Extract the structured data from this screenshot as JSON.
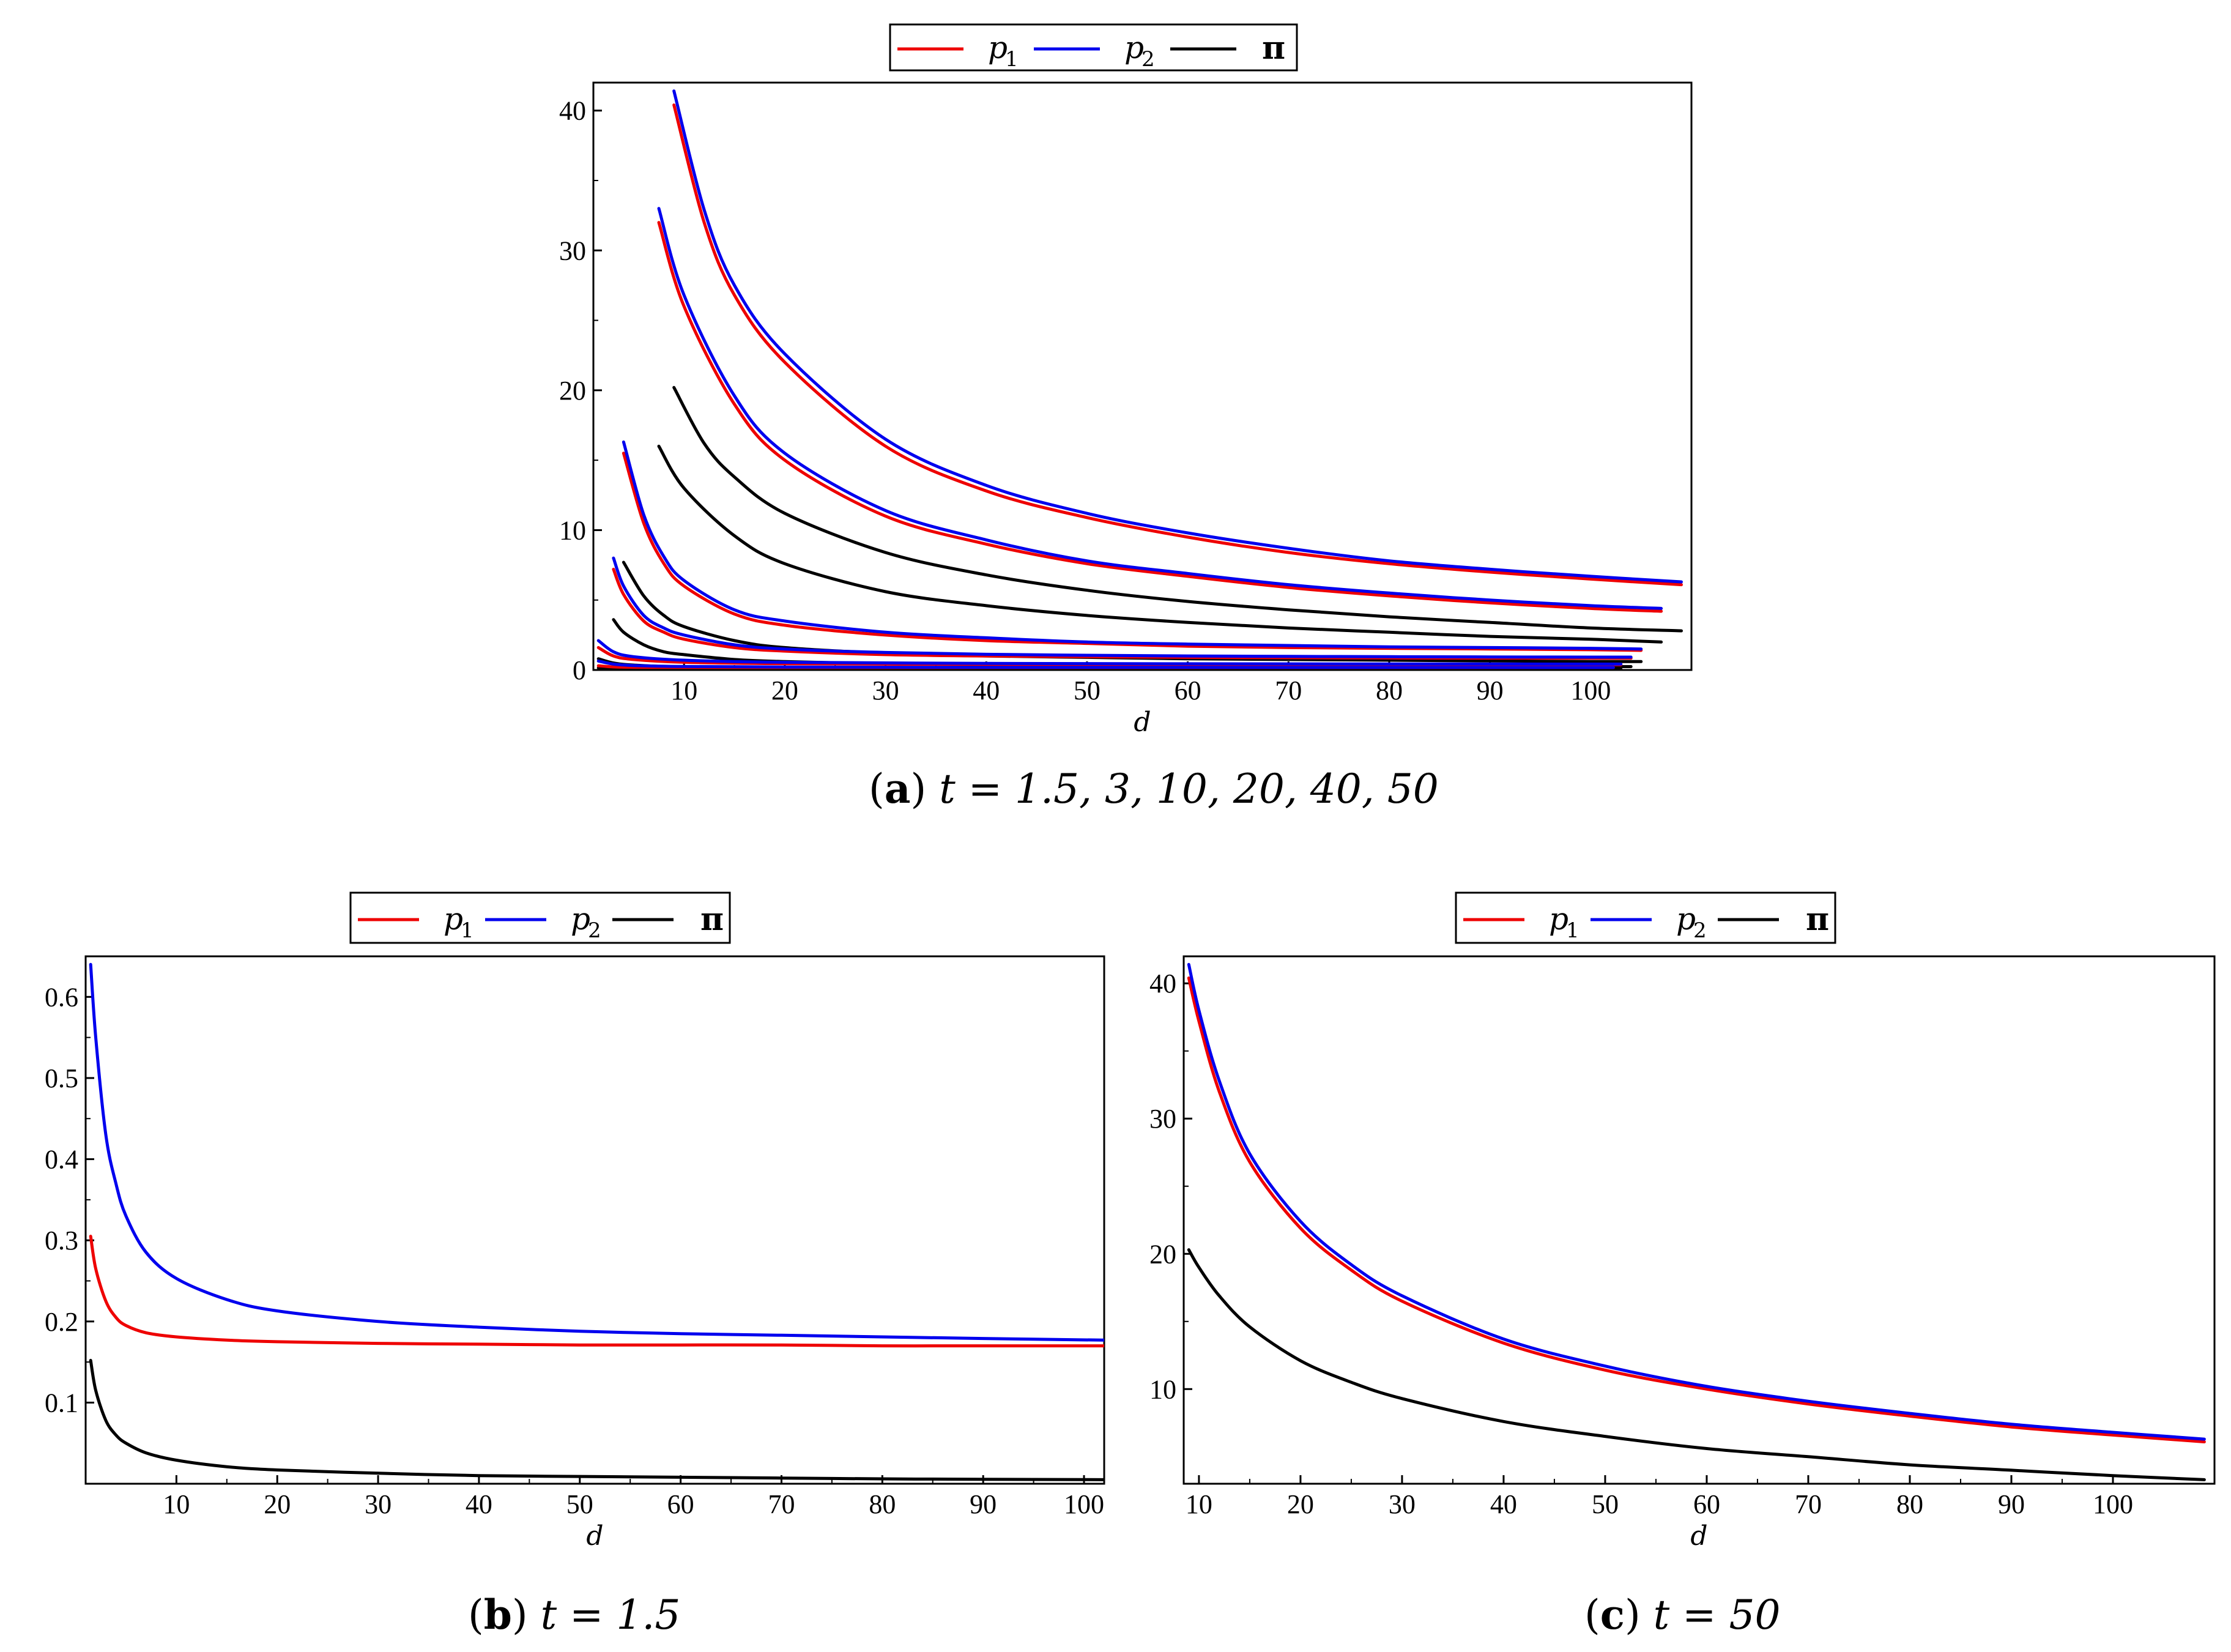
{
  "legend": {
    "p1": {
      "label": "p",
      "sub": "1",
      "color": "#ee0000"
    },
    "p2": {
      "label": "p",
      "sub": "2",
      "color": "#0000ee"
    },
    "pi": {
      "label": "π",
      "color": "#000000"
    }
  },
  "captions": {
    "a": {
      "letter": "a",
      "text": "t = 1.5, 3, 10, 20, 40, 50"
    },
    "b": {
      "letter": "b",
      "text": "t = 1.5"
    },
    "c": {
      "letter": "c",
      "text": "t = 50"
    }
  },
  "chart_data": [
    {
      "id": "a",
      "type": "line",
      "title": "(a) t = 1.5, 3, 10, 20, 40, 50",
      "xlabel": "d",
      "ylabel": "",
      "xlim": [
        1,
        110
      ],
      "ylim": [
        0,
        42
      ],
      "xticks": [
        10,
        20,
        30,
        40,
        50,
        60,
        70,
        80,
        90,
        100
      ],
      "yticks": [
        0,
        10,
        20,
        30,
        40
      ],
      "legend_position": "top-center",
      "t_values": [
        1.5,
        3,
        10,
        20,
        40,
        50
      ],
      "series": [
        {
          "name": "p1",
          "t": 50,
          "x": [
            9,
            12,
            15,
            20,
            30,
            40,
            50,
            60,
            70,
            80,
            90,
            100,
            109
          ],
          "y": [
            40.4,
            32.0,
            26.8,
            22.0,
            16.0,
            12.8,
            10.9,
            9.5,
            8.4,
            7.6,
            7.0,
            6.5,
            6.1
          ]
        },
        {
          "name": "p2",
          "t": 50,
          "x": [
            9,
            12,
            15,
            20,
            30,
            40,
            50,
            60,
            70,
            80,
            90,
            100,
            109
          ],
          "y": [
            41.4,
            32.9,
            27.5,
            22.6,
            16.5,
            13.2,
            11.2,
            9.8,
            8.7,
            7.8,
            7.2,
            6.7,
            6.3
          ]
        },
        {
          "name": "pi",
          "t": 50,
          "x": [
            9,
            12,
            15,
            20,
            30,
            40,
            50,
            60,
            70,
            80,
            90,
            100,
            109
          ],
          "y": [
            20.2,
            16.2,
            13.8,
            11.2,
            8.4,
            6.8,
            5.7,
            4.9,
            4.3,
            3.8,
            3.4,
            3.0,
            2.8
          ]
        },
        {
          "name": "p1",
          "t": 40,
          "x": [
            7.5,
            10,
            15,
            20,
            30,
            40,
            50,
            60,
            70,
            80,
            90,
            100,
            107
          ],
          "y": [
            32.0,
            26.0,
            19.0,
            15.0,
            11.0,
            9.0,
            7.6,
            6.7,
            5.9,
            5.3,
            4.8,
            4.4,
            4.2
          ]
        },
        {
          "name": "p2",
          "t": 40,
          "x": [
            7.5,
            10,
            15,
            20,
            30,
            40,
            50,
            60,
            70,
            80,
            90,
            100,
            107
          ],
          "y": [
            33.0,
            26.8,
            19.6,
            15.5,
            11.4,
            9.3,
            7.8,
            6.9,
            6.1,
            5.5,
            5.0,
            4.6,
            4.4
          ]
        },
        {
          "name": "pi",
          "t": 40,
          "x": [
            7.5,
            10,
            15,
            20,
            30,
            40,
            50,
            60,
            70,
            80,
            90,
            100,
            107
          ],
          "y": [
            16.0,
            13.0,
            9.6,
            7.6,
            5.6,
            4.6,
            3.9,
            3.4,
            3.0,
            2.7,
            2.4,
            2.2,
            2.0
          ]
        },
        {
          "name": "p1",
          "t": 20,
          "x": [
            4,
            6,
            8,
            10,
            15,
            20,
            30,
            40,
            50,
            60,
            70,
            80,
            90,
            100,
            105
          ],
          "y": [
            15.5,
            10.5,
            7.6,
            6.0,
            4.0,
            3.2,
            2.5,
            2.1,
            1.9,
            1.7,
            1.6,
            1.55,
            1.5,
            1.45,
            1.4
          ]
        },
        {
          "name": "p2",
          "t": 20,
          "x": [
            4,
            6,
            8,
            10,
            15,
            20,
            30,
            40,
            50,
            60,
            70,
            80,
            90,
            100,
            105
          ],
          "y": [
            16.3,
            11.1,
            8.1,
            6.4,
            4.3,
            3.5,
            2.7,
            2.3,
            2.0,
            1.85,
            1.75,
            1.65,
            1.6,
            1.55,
            1.5
          ]
        },
        {
          "name": "pi",
          "t": 20,
          "x": [
            4,
            6,
            8,
            10,
            15,
            20,
            30,
            40,
            50,
            60,
            70,
            80,
            90,
            100,
            105
          ],
          "y": [
            7.7,
            5.3,
            3.9,
            3.1,
            2.1,
            1.6,
            1.2,
            1.0,
            0.9,
            0.8,
            0.75,
            0.7,
            0.65,
            0.6,
            0.6
          ]
        },
        {
          "name": "p1",
          "t": 10,
          "x": [
            3,
            4,
            6,
            8,
            10,
            15,
            20,
            30,
            40,
            50,
            60,
            70,
            80,
            90,
            100,
            104
          ],
          "y": [
            7.2,
            5.4,
            3.5,
            2.7,
            2.2,
            1.6,
            1.35,
            1.1,
            1.0,
            0.95,
            0.9,
            0.88,
            0.86,
            0.85,
            0.84,
            0.84
          ]
        },
        {
          "name": "p2",
          "t": 10,
          "x": [
            3,
            4,
            6,
            8,
            10,
            15,
            20,
            30,
            40,
            50,
            60,
            70,
            80,
            90,
            100,
            104
          ],
          "y": [
            8.0,
            6.0,
            3.9,
            3.0,
            2.5,
            1.8,
            1.5,
            1.25,
            1.12,
            1.05,
            1.0,
            0.97,
            0.95,
            0.93,
            0.92,
            0.92
          ]
        },
        {
          "name": "pi",
          "t": 10,
          "x": [
            3,
            4,
            6,
            8,
            10,
            15,
            20,
            30,
            40,
            50,
            60,
            70,
            80,
            90,
            100,
            104
          ],
          "y": [
            3.6,
            2.7,
            1.8,
            1.3,
            1.1,
            0.75,
            0.6,
            0.45,
            0.38,
            0.33,
            0.3,
            0.28,
            0.26,
            0.25,
            0.24,
            0.24
          ]
        },
        {
          "name": "p1",
          "t": 3,
          "x": [
            1.5,
            3,
            5,
            10,
            20,
            40,
            60,
            80,
            100,
            103
          ],
          "y": [
            1.6,
            1.0,
            0.75,
            0.55,
            0.45,
            0.4,
            0.38,
            0.37,
            0.37,
            0.37
          ]
        },
        {
          "name": "p2",
          "t": 3,
          "x": [
            1.5,
            3,
            5,
            10,
            20,
            40,
            60,
            80,
            100,
            103
          ],
          "y": [
            2.1,
            1.3,
            0.95,
            0.7,
            0.55,
            0.47,
            0.44,
            0.43,
            0.42,
            0.42
          ]
        },
        {
          "name": "pi",
          "t": 3,
          "x": [
            1.5,
            3,
            5,
            10,
            20,
            40,
            60,
            80,
            100,
            103
          ],
          "y": [
            0.8,
            0.5,
            0.35,
            0.2,
            0.12,
            0.08,
            0.07,
            0.06,
            0.06,
            0.06
          ]
        },
        {
          "name": "p1",
          "t": 1.5,
          "x": [
            1.5,
            3,
            5,
            10,
            20,
            40,
            60,
            80,
            100,
            102
          ],
          "y": [
            0.3,
            0.22,
            0.19,
            0.18,
            0.175,
            0.172,
            0.171,
            0.17,
            0.17,
            0.17
          ]
        },
        {
          "name": "p2",
          "t": 1.5,
          "x": [
            1.5,
            3,
            5,
            10,
            20,
            40,
            60,
            80,
            100,
            102
          ],
          "y": [
            0.64,
            0.42,
            0.32,
            0.25,
            0.21,
            0.19,
            0.183,
            0.18,
            0.177,
            0.177
          ]
        },
        {
          "name": "pi",
          "t": 1.5,
          "x": [
            1.5,
            3,
            5,
            10,
            20,
            40,
            60,
            80,
            100,
            102
          ],
          "y": [
            0.15,
            0.08,
            0.05,
            0.03,
            0.018,
            0.01,
            0.007,
            0.005,
            0.004,
            0.004
          ]
        }
      ]
    },
    {
      "id": "b",
      "type": "line",
      "title": "(b) t = 1.5",
      "xlabel": "d",
      "ylabel": "",
      "xlim": [
        1,
        102
      ],
      "ylim": [
        0.0,
        0.65
      ],
      "xticks": [
        10,
        20,
        30,
        40,
        50,
        60,
        70,
        80,
        90,
        100
      ],
      "yticks": [
        0.1,
        0.2,
        0.3,
        0.4,
        0.5,
        0.6
      ],
      "legend_position": "top-center",
      "series": [
        {
          "name": "p1",
          "x": [
            1.5,
            2,
            3,
            4,
            5,
            7,
            10,
            15,
            20,
            30,
            40,
            50,
            60,
            70,
            80,
            90,
            102
          ],
          "y": [
            0.305,
            0.265,
            0.225,
            0.205,
            0.195,
            0.186,
            0.181,
            0.177,
            0.175,
            0.173,
            0.172,
            0.171,
            0.171,
            0.171,
            0.17,
            0.17,
            0.17
          ]
        },
        {
          "name": "p2",
          "x": [
            1.5,
            2,
            3,
            4,
            5,
            7,
            10,
            15,
            20,
            30,
            40,
            50,
            60,
            70,
            80,
            90,
            102
          ],
          "y": [
            0.64,
            0.55,
            0.43,
            0.37,
            0.33,
            0.285,
            0.253,
            0.227,
            0.213,
            0.2,
            0.193,
            0.188,
            0.185,
            0.183,
            0.181,
            0.179,
            0.177
          ]
        },
        {
          "name": "pi",
          "x": [
            1.5,
            2,
            3,
            4,
            5,
            7,
            10,
            15,
            20,
            30,
            40,
            50,
            60,
            70,
            80,
            90,
            102
          ],
          "y": [
            0.152,
            0.115,
            0.078,
            0.06,
            0.05,
            0.038,
            0.029,
            0.021,
            0.017,
            0.013,
            0.01,
            0.009,
            0.008,
            0.007,
            0.006,
            0.0055,
            0.005
          ]
        }
      ]
    },
    {
      "id": "c",
      "type": "line",
      "title": "(c) t = 50",
      "xlabel": "d",
      "ylabel": "",
      "xlim": [
        8.5,
        110
      ],
      "ylim": [
        3.0,
        42
      ],
      "xticks": [
        10,
        20,
        30,
        40,
        50,
        60,
        70,
        80,
        90,
        100
      ],
      "yticks": [
        10,
        20,
        30,
        40
      ],
      "legend_position": "top-center",
      "series": [
        {
          "name": "p1",
          "x": [
            9,
            10,
            12,
            15,
            20,
            25,
            30,
            40,
            50,
            60,
            70,
            80,
            90,
            100,
            109
          ],
          "y": [
            40.4,
            37.2,
            32.0,
            26.8,
            21.9,
            18.8,
            16.5,
            13.4,
            11.4,
            10.0,
            8.9,
            8.0,
            7.2,
            6.6,
            6.1
          ]
        },
        {
          "name": "p2",
          "x": [
            9,
            10,
            12,
            15,
            20,
            25,
            30,
            40,
            50,
            60,
            70,
            80,
            90,
            100,
            109
          ],
          "y": [
            41.4,
            38.0,
            32.8,
            27.4,
            22.4,
            19.2,
            16.9,
            13.7,
            11.7,
            10.2,
            9.1,
            8.2,
            7.4,
            6.8,
            6.3
          ]
        },
        {
          "name": "pi",
          "x": [
            9,
            10,
            12,
            15,
            20,
            25,
            30,
            40,
            50,
            60,
            70,
            80,
            90,
            100,
            109
          ],
          "y": [
            20.3,
            19.0,
            16.9,
            14.6,
            12.1,
            10.5,
            9.3,
            7.6,
            6.5,
            5.6,
            5.0,
            4.4,
            4.0,
            3.6,
            3.3
          ]
        }
      ]
    }
  ]
}
